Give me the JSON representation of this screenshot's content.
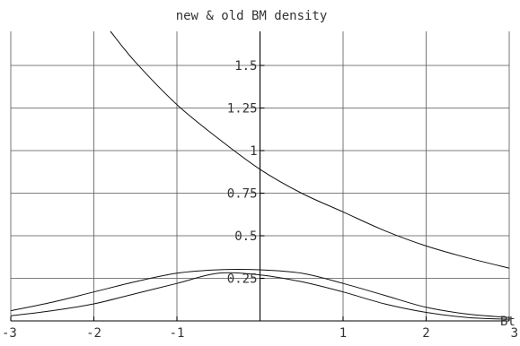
{
  "chart_data": {
    "type": "line",
    "title": "new & old BM density",
    "xlabel": "Bt",
    "ylabel": "",
    "xlim": [
      -3,
      3
    ],
    "ylim": [
      0,
      1.7
    ],
    "grid": true,
    "x_ticks": [
      {
        "value": -3,
        "label": "-3"
      },
      {
        "value": -2,
        "label": "-2"
      },
      {
        "value": -1,
        "label": "-1"
      },
      {
        "value": 1,
        "label": "1"
      },
      {
        "value": 2,
        "label": "2"
      },
      {
        "value": 3,
        "label": "3"
      }
    ],
    "y_ticks": [
      {
        "value": 0.25,
        "label": "0.25"
      },
      {
        "value": 0.5,
        "label": "0.5"
      },
      {
        "value": 0.75,
        "label": "0.75"
      },
      {
        "value": 1,
        "label": "1"
      },
      {
        "value": 1.25,
        "label": "1.25"
      },
      {
        "value": 1.5,
        "label": "1.5"
      }
    ],
    "series": [
      {
        "x": [
          -1.8,
          -1.5,
          -1.0,
          -0.5,
          0.0,
          0.5,
          1.0,
          1.5,
          2.0,
          2.5,
          3.0
        ],
        "y": [
          1.7,
          1.52,
          1.27,
          1.07,
          0.89,
          0.75,
          0.64,
          0.53,
          0.44,
          0.37,
          0.31
        ]
      },
      {
        "x": [
          -3.0,
          -2.5,
          -2.0,
          -1.5,
          -1.0,
          -0.5,
          0.0,
          0.5,
          1.0,
          1.5,
          2.0,
          2.5,
          3.0
        ],
        "y": [
          0.06,
          0.11,
          0.17,
          0.23,
          0.28,
          0.3,
          0.3,
          0.28,
          0.22,
          0.15,
          0.08,
          0.04,
          0.02
        ]
      },
      {
        "x": [
          -3.0,
          -2.5,
          -2.0,
          -1.5,
          -1.0,
          -0.5,
          0.0,
          0.5,
          1.0,
          1.5,
          2.0,
          2.5,
          3.0
        ],
        "y": [
          0.03,
          0.06,
          0.1,
          0.16,
          0.22,
          0.28,
          0.27,
          0.23,
          0.17,
          0.1,
          0.05,
          0.02,
          0.01
        ]
      }
    ]
  }
}
